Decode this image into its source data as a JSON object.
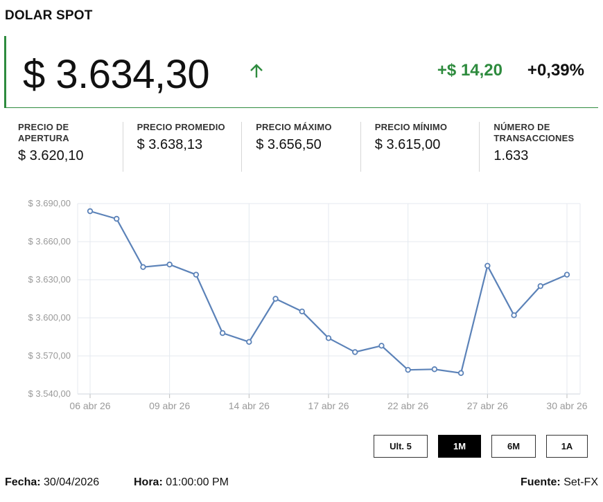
{
  "header": {
    "title": "DOLAR SPOT"
  },
  "price": {
    "current": "$ 3.634,30",
    "change_abs": "+$ 14,20",
    "change_pct": "+0,39%",
    "trend_icon": "arrow-up-icon",
    "accent_color": "#2e8b3e"
  },
  "stats": [
    {
      "label": "PRECIO DE APERTURA",
      "value": "$ 3.620,10"
    },
    {
      "label": "PRECIO PROMEDIO",
      "value": "$ 3.638,13"
    },
    {
      "label": "PRECIO MÁXIMO",
      "value": "$ 3.656,50"
    },
    {
      "label": "PRECIO MÍNIMO",
      "value": "$ 3.615,00"
    },
    {
      "label": "NÚMERO DE TRANSACCIONES",
      "value": "1.633"
    }
  ],
  "chart_data": {
    "type": "line",
    "title": "",
    "xlabel": "",
    "ylabel": "",
    "ylim": [
      3540,
      3690
    ],
    "yticks": [
      3540,
      3570,
      3600,
      3630,
      3660,
      3690
    ],
    "ytick_labels": [
      "$ 3.540,00",
      "$ 3.570,00",
      "$ 3.600,00",
      "$ 3.630,00",
      "$ 3.660,00",
      "$ 3.690,00"
    ],
    "xticks": [
      "06 abr 26",
      "09 abr 26",
      "14 abr 26",
      "17 abr 26",
      "22 abr 26",
      "27 abr 26",
      "30 abr 26"
    ],
    "xtick_positions": [
      0,
      3,
      6,
      9,
      12,
      15,
      18
    ],
    "grid": true,
    "line_color": "#5b82b8",
    "series": [
      {
        "values": [
          3684,
          3678,
          3640,
          3642,
          3634,
          3588,
          3581,
          3615,
          3605,
          3584,
          3573,
          3578,
          3559,
          3559.5,
          3556.5,
          3641,
          3602,
          3625,
          3634
        ]
      }
    ]
  },
  "range_buttons": [
    {
      "label": "Ult. 5",
      "active": false
    },
    {
      "label": "1M",
      "active": true
    },
    {
      "label": "6M",
      "active": false
    },
    {
      "label": "1A",
      "active": false
    }
  ],
  "footer": {
    "date_label": "Fecha:",
    "date_value": "30/04/2026",
    "time_label": "Hora:",
    "time_value": "01:00:00 PM",
    "source_label": "Fuente:",
    "source_value": "Set-FX"
  }
}
